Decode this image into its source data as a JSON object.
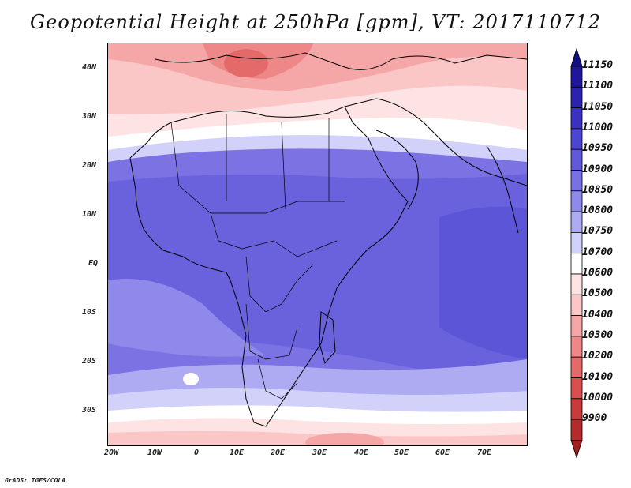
{
  "title": "Geopotential Height at 250hPa [gpm], VT: 2017110712",
  "credit": "GrADS: IGES/COLA",
  "x_ticks": [
    "20W",
    "10W",
    "0",
    "10E",
    "20E",
    "30E",
    "40E",
    "50E",
    "60E",
    "70E"
  ],
  "y_ticks": [
    "40N",
    "30N",
    "20N",
    "10N",
    "EQ",
    "10S",
    "20S",
    "30S"
  ],
  "colorbar": {
    "labels": [
      "11150",
      "11100",
      "11050",
      "11000",
      "10950",
      "10900",
      "10850",
      "10800",
      "10750",
      "10700",
      "10600",
      "10500",
      "10400",
      "10300",
      "10200",
      "10100",
      "10000",
      "9900"
    ],
    "colors": [
      "#1f1699",
      "#2c22ad",
      "#3a31c0",
      "#4c45cf",
      "#6259da",
      "#7870e3",
      "#8f89eb",
      "#aeabf3",
      "#d2d1fa",
      "#ffffff",
      "#fde3e3",
      "#fbc6c6",
      "#f5a6a6",
      "#ee8888",
      "#e46a6a",
      "#d84f4f",
      "#c93b3b",
      "#b42b2b"
    ],
    "top_arrow_color": "#130f82",
    "bottom_arrow_color": "#a01f1f"
  }
}
